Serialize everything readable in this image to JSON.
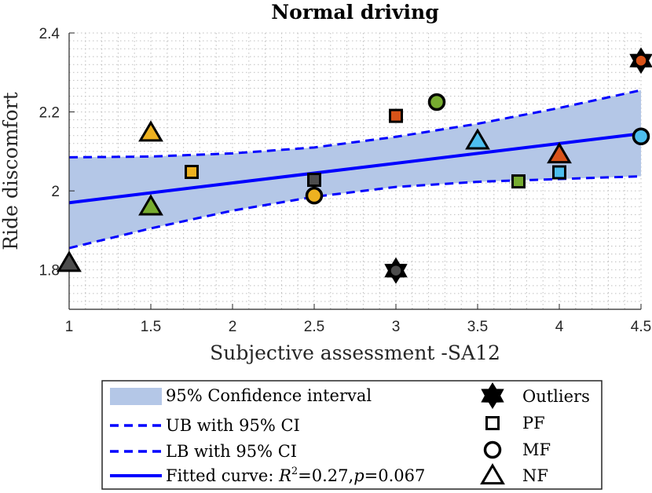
{
  "chart_data": {
    "type": "scatter",
    "title": "Normal driving",
    "xlabel": "Subjective assessment -SA12",
    "ylabel": "Ride discomfort",
    "xlim": [
      1,
      4.5
    ],
    "ylim": [
      1.7,
      2.4
    ],
    "xticks": [
      1,
      1.5,
      2,
      2.5,
      3,
      3.5,
      4,
      4.5
    ],
    "xtick_labels": [
      "1",
      "1.5",
      "2",
      "2.5",
      "3",
      "3.5",
      "4",
      "4.5"
    ],
    "yticks": [
      1.8,
      2.0,
      2.2,
      2.4
    ],
    "ytick_labels": [
      "1.8",
      "2",
      "2.2",
      "2.4"
    ],
    "grid": "on (major and minor, dotted)",
    "legend_position": "below plot",
    "fitted_curve": {
      "intercept": 1.92,
      "slope": 0.05,
      "r2": "0.27",
      "p": "0.067"
    },
    "ci_upper": {
      "x": [
        1,
        1.5,
        2,
        2.5,
        3,
        3.5,
        4,
        4.5
      ],
      "y": [
        2.085,
        2.087,
        2.095,
        2.11,
        2.137,
        2.17,
        2.21,
        2.255
      ]
    },
    "ci_lower": {
      "x": [
        1,
        1.5,
        2,
        2.5,
        3,
        3.5,
        4,
        4.5
      ],
      "y": [
        1.855,
        1.905,
        1.95,
        1.985,
        2.01,
        2.023,
        2.03,
        2.037
      ]
    },
    "series": [
      {
        "name": "PF",
        "marker": "square",
        "points": [
          {
            "x": 1.75,
            "y": 2.048,
            "color": "#edb120"
          },
          {
            "x": 2.5,
            "y": 2.028,
            "color": "#4d4d4d"
          },
          {
            "x": 3.0,
            "y": 2.19,
            "color": "#d95319"
          },
          {
            "x": 3.75,
            "y": 2.024,
            "color": "#77ac30"
          },
          {
            "x": 4.0,
            "y": 2.047,
            "color": "#4dbeee"
          }
        ]
      },
      {
        "name": "MF",
        "marker": "circle",
        "points": [
          {
            "x": 2.5,
            "y": 1.988,
            "color": "#edb120"
          },
          {
            "x": 3.25,
            "y": 2.225,
            "color": "#77ac30"
          },
          {
            "x": 4.5,
            "y": 2.138,
            "color": "#4dbeee"
          }
        ]
      },
      {
        "name": "NF",
        "marker": "triangle",
        "points": [
          {
            "x": 1.0,
            "y": 1.815,
            "color": "#4d4d4d"
          },
          {
            "x": 1.5,
            "y": 2.145,
            "color": "#edb120"
          },
          {
            "x": 1.5,
            "y": 1.958,
            "color": "#77ac30"
          },
          {
            "x": 3.5,
            "y": 2.125,
            "color": "#4dbeee"
          },
          {
            "x": 4.0,
            "y": 2.09,
            "color": "#d95319"
          }
        ]
      },
      {
        "name": "Outliers",
        "marker": "hexagram",
        "points": [
          {
            "x": 3.0,
            "y": 1.798,
            "color": "#4d4d4d",
            "inner": "circle"
          },
          {
            "x": 4.5,
            "y": 2.33,
            "color": "#d95319",
            "inner": "circle"
          }
        ]
      }
    ],
    "colors": {
      "band": "#b4c7e7",
      "line": "#0000ff",
      "axis": "#262626",
      "grid": "#bfbfbf"
    }
  },
  "legend": {
    "left": [
      {
        "key": "band",
        "label": "95% Confidence interval"
      },
      {
        "key": "ub",
        "label": "UB with 95% CI"
      },
      {
        "key": "lb",
        "label": "LB with 95% CI"
      },
      {
        "key": "fit",
        "label_prefix": "Fitted curve: ",
        "r_letter": "R",
        "r_sup": "2",
        "eq1": "=0.27,",
        "p_letter": "p",
        "eq2": "=0.067"
      }
    ],
    "right": [
      {
        "key": "hexagram",
        "label": "Outliers"
      },
      {
        "key": "square",
        "label": "PF"
      },
      {
        "key": "circle",
        "label": "MF"
      },
      {
        "key": "triangle",
        "label": "NF"
      }
    ]
  }
}
